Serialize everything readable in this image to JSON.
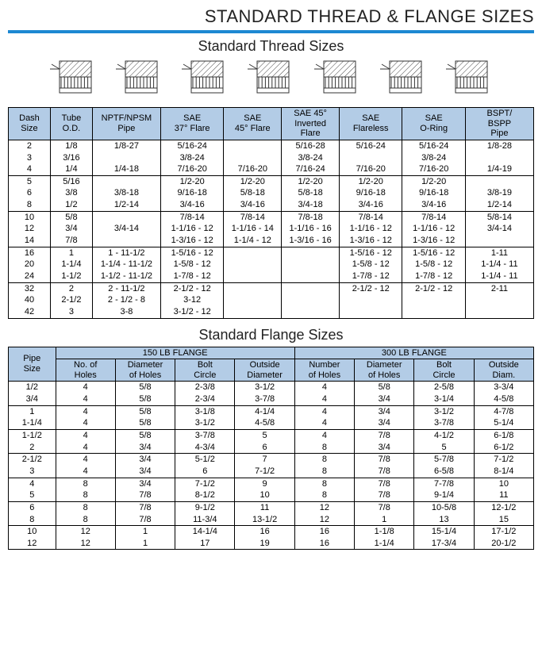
{
  "mainTitle": "STANDARD THREAD & FLANGE SIZES",
  "threadTitle": "Standard Thread Sizes",
  "flangeTitle": "Standard Flange Sizes",
  "colors": {
    "accent": "#1d88d2",
    "header_bg": "#b3cce6",
    "border": "#000000",
    "bg": "#ffffff"
  },
  "thread": {
    "headers": [
      "Dash\nSize",
      "Tube\nO.D.",
      "NPTF/NPSM\nPipe",
      "SAE\n37° Flare",
      "SAE\n45° Flare",
      "SAE 45°\nInverted\nFlare",
      "SAE\nFlareless",
      "SAE\nO-Ring",
      "BSPT/\nBSPP\nPipe"
    ],
    "icon_labels": [
      "nptf-pipe-icon",
      "sae-37-flare-icon",
      "sae-45-flare-icon",
      "sae-45-inverted-icon",
      "sae-flareless-icon",
      "sae-oring-icon",
      "bspt-pipe-icon"
    ],
    "groups": [
      [
        [
          "2",
          "1/8",
          "1/8-27",
          "5/16-24",
          "",
          "5/16-28",
          "5/16-24",
          "5/16-24",
          "1/8-28"
        ],
        [
          "3",
          "3/16",
          "",
          "3/8-24",
          "",
          "3/8-24",
          "",
          "3/8-24",
          ""
        ],
        [
          "4",
          "1/4",
          "1/4-18",
          "7/16-20",
          "7/16-20",
          "7/16-24",
          "7/16-20",
          "7/16-20",
          "1/4-19"
        ]
      ],
      [
        [
          "5",
          "5/16",
          "",
          "1/2-20",
          "1/2-20",
          "1/2-20",
          "1/2-20",
          "1/2-20",
          ""
        ],
        [
          "6",
          "3/8",
          "3/8-18",
          "9/16-18",
          "5/8-18",
          "5/8-18",
          "9/16-18",
          "9/16-18",
          "3/8-19"
        ],
        [
          "8",
          "1/2",
          "1/2-14",
          "3/4-16",
          "3/4-16",
          "3/4-18",
          "3/4-16",
          "3/4-16",
          "1/2-14"
        ]
      ],
      [
        [
          "10",
          "5/8",
          "",
          "7/8-14",
          "7/8-14",
          "7/8-18",
          "7/8-14",
          "7/8-14",
          "5/8-14"
        ],
        [
          "12",
          "3/4",
          "3/4-14",
          "1-1/16 - 12",
          "1-1/16 - 14",
          "1-1/16 - 16",
          "1-1/16 - 12",
          "1-1/16 - 12",
          "3/4-14"
        ],
        [
          "14",
          "7/8",
          "",
          "1-3/16 - 12",
          "1-1/4 - 12",
          "1-3/16 - 16",
          "1-3/16 - 12",
          "1-3/16 - 12",
          ""
        ]
      ],
      [
        [
          "16",
          "1",
          "1 - 11-1/2",
          "1-5/16 - 12",
          "",
          "",
          "1-5/16 - 12",
          "1-5/16 - 12",
          "1-11"
        ],
        [
          "20",
          "1-1/4",
          "1-1/4 - 11-1/2",
          "1-5/8 - 12",
          "",
          "",
          "1-5/8 - 12",
          "1-5/8 - 12",
          "1-1/4 - 11"
        ],
        [
          "24",
          "1-1/2",
          "1-1/2 - 11-1/2",
          "1-7/8 - 12",
          "",
          "",
          "1-7/8 - 12",
          "1-7/8 - 12",
          "1-1/4 - 11"
        ]
      ],
      [
        [
          "32",
          "2",
          "2 - 11-1/2",
          "2-1/2 - 12",
          "",
          "",
          "2-1/2 - 12",
          "2-1/2 - 12",
          "2-11"
        ],
        [
          "40",
          "2-1/2",
          "2 - 1/2 - 8",
          "3-12",
          "",
          "",
          "",
          "",
          ""
        ],
        [
          "42",
          "3",
          "3-8",
          "3-1/2 - 12",
          "",
          "",
          "",
          "",
          ""
        ]
      ]
    ]
  },
  "flange": {
    "pipeHeader": "Pipe\nSize",
    "super": [
      "150 LB FLANGE",
      "300 LB FLANGE"
    ],
    "sub": [
      "No. of\nHoles",
      "Diameter\nof Holes",
      "Bolt\nCircle",
      "Outside\nDiameter",
      "Number\nof Holes",
      "Diameter\nof Holes",
      "Bolt\nCircle",
      "Outside\nDiam."
    ],
    "groups": [
      [
        [
          "1/2",
          "4",
          "5/8",
          "2-3/8",
          "3-1/2",
          "4",
          "5/8",
          "2-5/8",
          "3-3/4"
        ],
        [
          "3/4",
          "4",
          "5/8",
          "2-3/4",
          "3-7/8",
          "4",
          "3/4",
          "3-1/4",
          "4-5/8"
        ]
      ],
      [
        [
          "1",
          "4",
          "5/8",
          "3-1/8",
          "4-1/4",
          "4",
          "3/4",
          "3-1/2",
          "4-7/8"
        ],
        [
          "1-1/4",
          "4",
          "5/8",
          "3-1/2",
          "4-5/8",
          "4",
          "3/4",
          "3-7/8",
          "5-1/4"
        ]
      ],
      [
        [
          "1-1/2",
          "4",
          "5/8",
          "3-7/8",
          "5",
          "4",
          "7/8",
          "4-1/2",
          "6-1/8"
        ],
        [
          "2",
          "4",
          "3/4",
          "4-3/4",
          "6",
          "8",
          "3/4",
          "5",
          "6-1/2"
        ]
      ],
      [
        [
          "2-1/2",
          "4",
          "3/4",
          "5-1/2",
          "7",
          "8",
          "7/8",
          "5-7/8",
          "7-1/2"
        ],
        [
          "3",
          "4",
          "3/4",
          "6",
          "7-1/2",
          "8",
          "7/8",
          "6-5/8",
          "8-1/4"
        ]
      ],
      [
        [
          "4",
          "8",
          "3/4",
          "7-1/2",
          "9",
          "8",
          "7/8",
          "7-7/8",
          "10"
        ],
        [
          "5",
          "8",
          "7/8",
          "8-1/2",
          "10",
          "8",
          "7/8",
          "9-1/4",
          "11"
        ]
      ],
      [
        [
          "6",
          "8",
          "7/8",
          "9-1/2",
          "11",
          "12",
          "7/8",
          "10-5/8",
          "12-1/2"
        ],
        [
          "8",
          "8",
          "7/8",
          "11-3/4",
          "13-1/2",
          "12",
          "1",
          "13",
          "15"
        ]
      ],
      [
        [
          "10",
          "12",
          "1",
          "14-1/4",
          "16",
          "16",
          "1-1/8",
          "15-1/4",
          "17-1/2"
        ],
        [
          "12",
          "12",
          "1",
          "17",
          "19",
          "16",
          "1-1/4",
          "17-3/4",
          "20-1/2"
        ]
      ]
    ]
  }
}
